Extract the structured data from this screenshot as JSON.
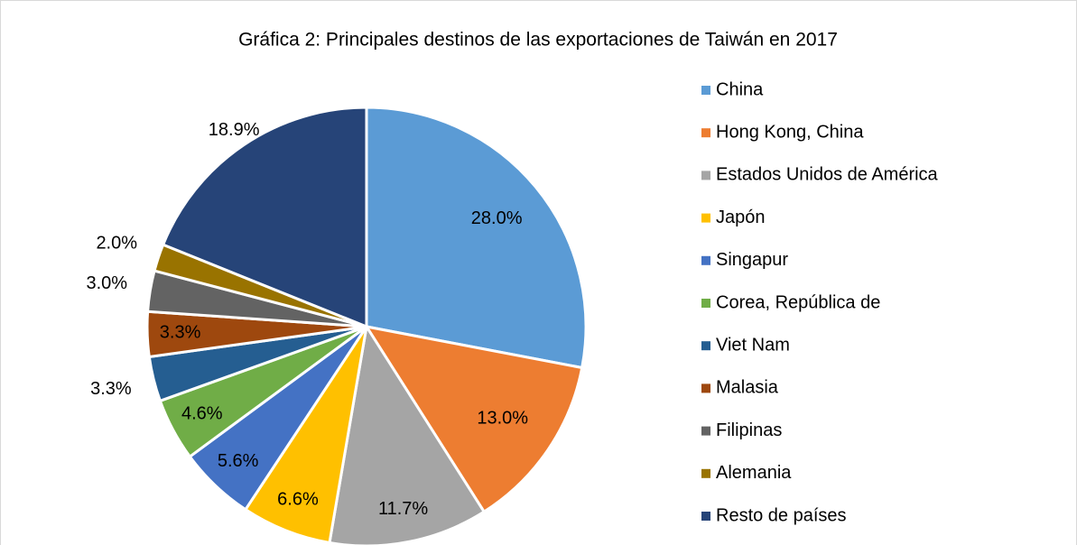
{
  "chart_data": {
    "type": "pie",
    "title": "Gráfica 2: Principales destinos de las exportaciones de Taiwán en 2017",
    "categories": [
      "China",
      "Hong Kong, China",
      "Estados Unidos de América",
      "Japón",
      "Singapur",
      "Corea, República de",
      "Viet Nam",
      "Malasia",
      "Filipinas",
      "Alemania",
      "Resto de países"
    ],
    "values": [
      28.0,
      13.0,
      11.7,
      6.6,
      5.6,
      4.6,
      3.3,
      3.3,
      3.0,
      2.0,
      18.9
    ],
    "value_labels": [
      "28.0%",
      "13.0%",
      "11.7%",
      "6.6%",
      "5.6%",
      "4.6%",
      "3.3%",
      "3.3%",
      "3.0%",
      "2.0%",
      "18.9%"
    ],
    "colors": [
      "#5b9bd5",
      "#ed7d31",
      "#a5a5a5",
      "#ffc000",
      "#4472c4",
      "#70ad47",
      "#255e91",
      "#9e480e",
      "#636363",
      "#997300",
      "#264478"
    ],
    "legend": "right"
  }
}
